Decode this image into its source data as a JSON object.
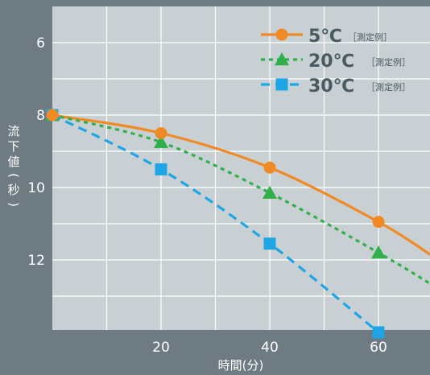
{
  "chart_data": {
    "type": "line",
    "xlabel": "時間(分)",
    "ylabel": "流下値(秒)",
    "xlim": [
      0,
      70
    ],
    "ylim": [
      6,
      14
    ],
    "y_inverted": true,
    "x_ticks": [
      20,
      40,
      60
    ],
    "y_ticks": [
      6,
      8,
      10,
      12
    ],
    "x_tick_labels": [
      "20",
      "40",
      "60"
    ],
    "y_tick_labels": [
      "6",
      "8",
      "10",
      "12"
    ],
    "x_grid_step": 10,
    "y_grid_step": 1,
    "grid": true,
    "legend_position": "top-right",
    "background": "#c9d0d4",
    "series": [
      {
        "name": "5℃",
        "note": "［測定例］",
        "color": "#f08a24",
        "marker": "circle",
        "dash": "solid",
        "points": [
          [
            0,
            8.0
          ],
          [
            20,
            8.5
          ],
          [
            40,
            9.45
          ],
          [
            60,
            10.95
          ]
        ],
        "curve_end": [
          70,
          11.9
        ]
      },
      {
        "name": "20℃",
        "note": "［測定例］",
        "color": "#2fb04a",
        "marker": "triangle",
        "dash": "dotted",
        "points": [
          [
            0,
            8.0
          ],
          [
            20,
            8.75
          ],
          [
            40,
            10.15
          ],
          [
            60,
            11.8
          ]
        ],
        "curve_end": [
          70,
          12.7
        ]
      },
      {
        "name": "30℃",
        "note": "［測定例］",
        "color": "#1ea5e6",
        "marker": "square",
        "dash": "dashed",
        "points": [
          [
            0,
            8.0
          ],
          [
            20,
            9.5
          ],
          [
            40,
            11.55
          ],
          [
            60,
            14.0
          ]
        ]
      }
    ]
  }
}
